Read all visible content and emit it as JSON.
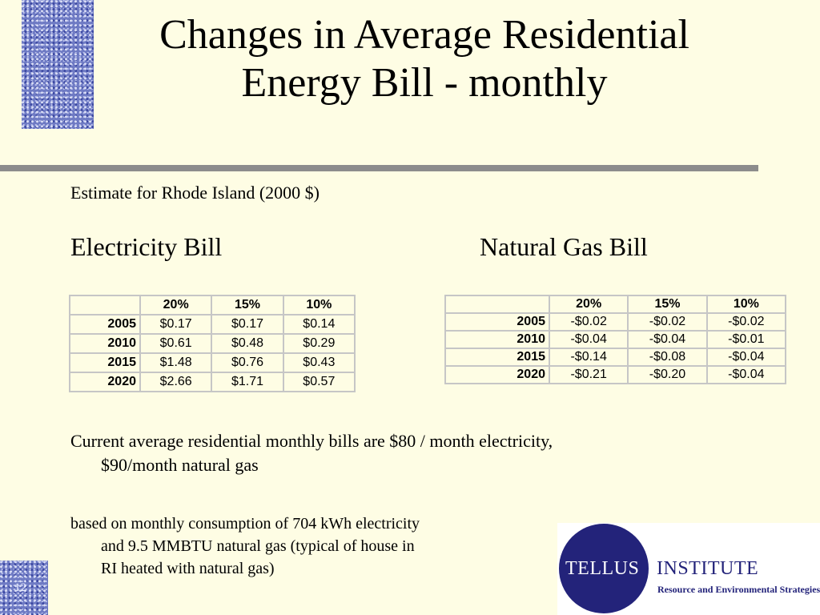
{
  "slide": {
    "title_line1": "Changes in Average Residential",
    "title_line2": "Energy Bill - monthly",
    "subtitle": "Estimate for Rhode Island (2000 $)",
    "slide_number": "12"
  },
  "electricity": {
    "heading": "Electricity Bill",
    "columns": [
      "",
      "20%",
      "15%",
      "10%"
    ],
    "rows": [
      {
        "year": "2005",
        "values": [
          "$0.17",
          "$0.17",
          "$0.14"
        ]
      },
      {
        "year": "2010",
        "values": [
          "$0.61",
          "$0.48",
          "$0.29"
        ]
      },
      {
        "year": "2015",
        "values": [
          "$1.48",
          "$0.76",
          "$0.43"
        ]
      },
      {
        "year": "2020",
        "values": [
          "$2.66",
          "$1.71",
          "$0.57"
        ]
      }
    ]
  },
  "gas": {
    "heading": "Natural Gas Bill",
    "columns": [
      "",
      "20%",
      "15%",
      "10%"
    ],
    "rows": [
      {
        "year": "2005",
        "values": [
          "-$0.02",
          "-$0.02",
          "-$0.02"
        ]
      },
      {
        "year": "2010",
        "values": [
          "-$0.04",
          "-$0.04",
          "-$0.01"
        ]
      },
      {
        "year": "2015",
        "values": [
          "-$0.14",
          "-$0.08",
          "-$0.04"
        ]
      },
      {
        "year": "2020",
        "values": [
          "-$0.21",
          "-$0.20",
          "-$0.04"
        ]
      }
    ]
  },
  "notes": {
    "current_line1": "Current average residential monthly bills are $80 / month electricity,",
    "current_line2": "$90/month natural gas",
    "based_line1": "based on monthly consumption of 704 kWh electricity",
    "based_line2": "and 9.5 MMBTU natural gas (typical of house in",
    "based_line3": "RI heated with natural gas)"
  },
  "logo": {
    "name_left": "TELLUS",
    "name_right": "INSTITUTE",
    "tagline": "Resource and Environmental Strategies"
  },
  "colors": {
    "background": "#fefde4",
    "divider": "#8c8c8c",
    "pattern": "#6f7bc4",
    "logo_blue": "#23237a"
  }
}
